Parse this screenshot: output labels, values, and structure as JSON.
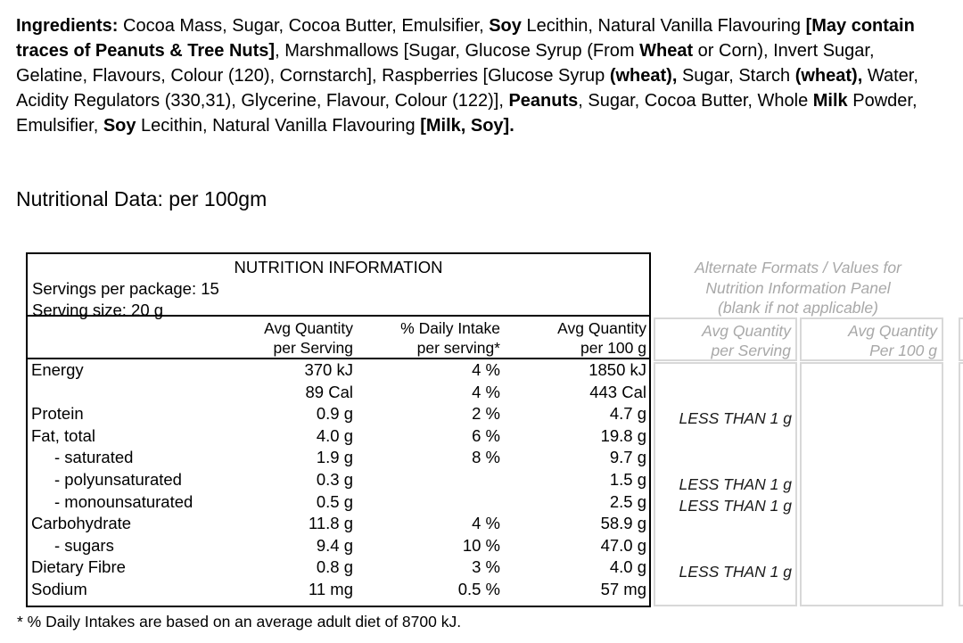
{
  "ingredients": {
    "segments": [
      {
        "text": "Ingredients:",
        "bold": true
      },
      {
        "text": "  Cocoa Mass, Sugar, Cocoa Butter, Emulsifier, ",
        "bold": false
      },
      {
        "text": "Soy",
        "bold": true
      },
      {
        "text": " Lecithin, Natural Vanilla Flavouring ",
        "bold": false
      },
      {
        "text": "[May contain traces of Peanuts & Tree Nuts]",
        "bold": true
      },
      {
        "text": ", Marshmallows [Sugar, Glucose Syrup (From ",
        "bold": false
      },
      {
        "text": "Wheat",
        "bold": true
      },
      {
        "text": " or Corn), Invert Sugar, Gelatine, Flavours, Colour (120), Cornstarch], Raspberries [Glucose Syrup ",
        "bold": false
      },
      {
        "text": "(wheat),",
        "bold": true
      },
      {
        "text": " Sugar, Starch ",
        "bold": false
      },
      {
        "text": "(wheat),",
        "bold": true
      },
      {
        "text": " Water, Acidity Regulators (330,31), Glycerine, Flavour, Colour (122)], ",
        "bold": false
      },
      {
        "text": "Peanuts",
        "bold": true
      },
      {
        "text": ", Sugar, Cocoa Butter, Whole ",
        "bold": false
      },
      {
        "text": "Milk",
        "bold": true
      },
      {
        "text": " Powder, Emulsifier, ",
        "bold": false
      },
      {
        "text": "Soy",
        "bold": true
      },
      {
        "text": " Lecithin, Natural Vanilla Flavouring ",
        "bold": false
      },
      {
        "text": "[Milk, Soy].",
        "bold": true
      }
    ]
  },
  "section_label": "Nutritional Data: per 100gm",
  "table": {
    "title": "NUTRITION INFORMATION",
    "servings_line": "Servings per package: 15",
    "serving_size_line": "Serving size: 20 g",
    "columns": {
      "per_serving_1": "Avg Quantity",
      "per_serving_2": "per Serving",
      "daily_intake_1": "% Daily Intake",
      "daily_intake_2": "per serving*",
      "per_100g_1": "Avg Quantity",
      "per_100g_2": "per 100 g"
    },
    "rows": [
      {
        "name": "Energy",
        "per_serving": "370 kJ",
        "daily_intake": "4 %",
        "per_100g": "1850 kJ",
        "alt_per_serving": ""
      },
      {
        "name": "",
        "per_serving": "89 Cal",
        "daily_intake": "4 %",
        "per_100g": "443 Cal",
        "alt_per_serving": ""
      },
      {
        "name": "Protein",
        "per_serving": "0.9 g",
        "daily_intake": "2 %",
        "per_100g": "4.7 g",
        "alt_per_serving": "LESS THAN 1 g"
      },
      {
        "name": "Fat, total",
        "per_serving": "4.0 g",
        "daily_intake": "6 %",
        "per_100g": "19.8 g",
        "alt_per_serving": ""
      },
      {
        "name": "- saturated",
        "per_serving": "1.9 g",
        "daily_intake": "8 %",
        "per_100g": "9.7 g",
        "alt_per_serving": ""
      },
      {
        "name": "- polyunsaturated",
        "per_serving": "0.3 g",
        "daily_intake": "",
        "per_100g": "1.5 g",
        "alt_per_serving": "LESS THAN 1 g"
      },
      {
        "name": "- monounsaturated",
        "per_serving": "0.5 g",
        "daily_intake": "",
        "per_100g": "2.5 g",
        "alt_per_serving": "LESS THAN 1 g"
      },
      {
        "name": "Carbohydrate",
        "per_serving": "11.8 g",
        "daily_intake": "4 %",
        "per_100g": "58.9 g",
        "alt_per_serving": ""
      },
      {
        "name": "- sugars",
        "per_serving": "9.4 g",
        "daily_intake": "10 %",
        "per_100g": "47.0 g",
        "alt_per_serving": ""
      },
      {
        "name": "Dietary Fibre",
        "per_serving": "0.8 g",
        "daily_intake": "3 %",
        "per_100g": "4.0 g",
        "alt_per_serving": "LESS THAN 1 g"
      },
      {
        "name": "Sodium",
        "per_serving": "11 mg",
        "daily_intake": "0.5 %",
        "per_100g": "57 mg",
        "alt_per_serving": ""
      }
    ],
    "footnote": "* % Daily Intakes are based on an average adult diet of 8700 kJ."
  },
  "alt_panel": {
    "heading_line1": "Alternate Formats / Values for",
    "heading_line2": "Nutrition Information Panel",
    "heading_line3": "(blank if not applicable)",
    "col1_line1": "Avg Quantity",
    "col1_line2": "per Serving",
    "col2_line1": "Avg Quantity",
    "col2_line2": "Per 100 g",
    "colors": {
      "text": "#a8a8a8",
      "border": "#d8d8d8"
    }
  }
}
